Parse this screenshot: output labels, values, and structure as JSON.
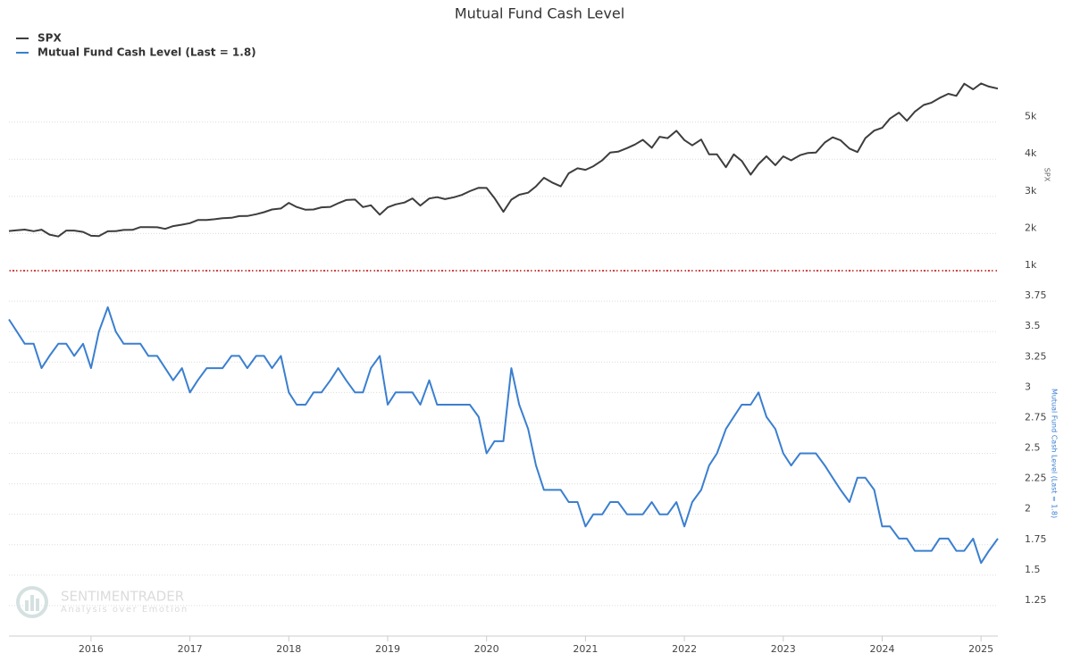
{
  "chart_data": {
    "type": "line",
    "title": "Mutual Fund Cash Level",
    "x": [
      2015.17,
      2015.25,
      2015.33,
      2015.42,
      2015.5,
      2015.58,
      2015.67,
      2015.75,
      2015.83,
      2015.92,
      2016,
      2016.08,
      2016.17,
      2016.25,
      2016.33,
      2016.42,
      2016.5,
      2016.58,
      2016.67,
      2016.75,
      2016.83,
      2016.92,
      2017,
      2017.08,
      2017.17,
      2017.25,
      2017.33,
      2017.42,
      2017.5,
      2017.58,
      2017.67,
      2017.75,
      2017.83,
      2017.92,
      2018,
      2018.08,
      2018.17,
      2018.25,
      2018.33,
      2018.42,
      2018.5,
      2018.58,
      2018.67,
      2018.75,
      2018.83,
      2018.92,
      2019,
      2019.08,
      2019.17,
      2019.25,
      2019.33,
      2019.42,
      2019.5,
      2019.58,
      2019.67,
      2019.75,
      2019.83,
      2019.92,
      2020,
      2020.08,
      2020.17,
      2020.25,
      2020.33,
      2020.42,
      2020.5,
      2020.58,
      2020.67,
      2020.75,
      2020.83,
      2020.92,
      2021,
      2021.08,
      2021.17,
      2021.25,
      2021.33,
      2021.42,
      2021.5,
      2021.58,
      2021.67,
      2021.75,
      2021.83,
      2021.92,
      2022,
      2022.08,
      2022.17,
      2022.25,
      2022.33,
      2022.42,
      2022.5,
      2022.58,
      2022.67,
      2022.75,
      2022.83,
      2022.92,
      2023,
      2023.08,
      2023.17,
      2023.25,
      2023.33,
      2023.42,
      2023.5,
      2023.58,
      2023.67,
      2023.75,
      2023.83,
      2023.92,
      2024,
      2024.08,
      2024.17,
      2024.25,
      2024.33,
      2024.42,
      2024.5,
      2024.58,
      2024.67,
      2024.75,
      2024.83,
      2024.92,
      2025,
      2025.08,
      2025.17
    ],
    "xlim": [
      2015.17,
      2025.17
    ],
    "xticks": [
      2016,
      2017,
      2018,
      2019,
      2020,
      2021,
      2022,
      2023,
      2024,
      2025
    ],
    "ylim": [
      1000,
      6170
    ],
    "yticks": [
      {
        "value": 1000,
        "label": "1k"
      },
      {
        "value": 2000,
        "label": "2k"
      },
      {
        "value": 3000,
        "label": "3k"
      },
      {
        "value": 4000,
        "label": "4k"
      },
      {
        "value": 5000,
        "label": "5k"
      }
    ],
    "y2lim": [
      1,
      4
    ],
    "y2ticks": [
      1.25,
      1.5,
      1.75,
      2,
      2.25,
      2.5,
      2.75,
      3,
      3.25,
      3.5,
      3.75
    ],
    "grid": true,
    "legend": "top-left",
    "series": [
      {
        "name": "SPX",
        "color": "#3d3d3d",
        "axis": "y",
        "values": [
          2068,
          2086,
          2107,
          2063,
          2104,
          1972,
          1920,
          2079,
          2080,
          2044,
          1940,
          1932,
          2060,
          2065,
          2097,
          2099,
          2174,
          2171,
          2168,
          2126,
          2199,
          2239,
          2279,
          2364,
          2363,
          2384,
          2412,
          2423,
          2470,
          2472,
          2519,
          2575,
          2648,
          2674,
          2824,
          2714,
          2641,
          2648,
          2705,
          2718,
          2816,
          2902,
          2914,
          2712,
          2760,
          2507,
          2704,
          2784,
          2834,
          2946,
          2752,
          2942,
          2980,
          2926,
          2977,
          3038,
          3141,
          3231,
          3226,
          2954,
          2585,
          2912,
          3044,
          3100,
          3271,
          3500,
          3363,
          3270,
          3622,
          3756,
          3714,
          3811,
          3973,
          4181,
          4204,
          4298,
          4395,
          4523,
          4308,
          4605,
          4567,
          4766,
          4516,
          4374,
          4530,
          4132,
          4132,
          3785,
          4130,
          3955,
          3586,
          3872,
          4080,
          3840,
          4077,
          3970,
          4109,
          4169,
          4180,
          4450,
          4589,
          4508,
          4288,
          4194,
          4568,
          4770,
          4846,
          5096,
          5254,
          5036,
          5278,
          5460,
          5522,
          5648,
          5762,
          5705,
          6032,
          5882,
          6041,
          5955,
          5900
        ]
      },
      {
        "name": "Mutual Fund Cash Level (Last = 1.8)",
        "color": "#3a7fd0",
        "axis": "y2",
        "values": [
          3.6,
          3.5,
          3.4,
          3.4,
          3.2,
          3.3,
          3.4,
          3.4,
          3.3,
          3.4,
          3.2,
          3.5,
          3.7,
          3.5,
          3.4,
          3.4,
          3.4,
          3.3,
          3.3,
          3.2,
          3.1,
          3.2,
          3.0,
          3.1,
          3.2,
          3.2,
          3.2,
          3.3,
          3.3,
          3.2,
          3.3,
          3.3,
          3.2,
          3.3,
          3.0,
          2.9,
          2.9,
          3.0,
          3.0,
          3.1,
          3.2,
          3.1,
          3.0,
          3.0,
          3.2,
          3.3,
          2.9,
          3.0,
          3.0,
          3.0,
          2.9,
          3.1,
          2.9,
          2.9,
          2.9,
          2.9,
          2.9,
          2.8,
          2.5,
          2.6,
          2.6,
          3.2,
          2.9,
          2.7,
          2.4,
          2.2,
          2.2,
          2.2,
          2.1,
          2.1,
          1.9,
          2.0,
          2.0,
          2.1,
          2.1,
          2.0,
          2.0,
          2.0,
          2.1,
          2.0,
          2.0,
          2.1,
          1.9,
          2.1,
          2.2,
          2.4,
          2.5,
          2.7,
          2.8,
          2.9,
          2.9,
          3.0,
          2.8,
          2.7,
          2.5,
          2.4,
          2.5,
          2.5,
          2.5,
          2.4,
          2.3,
          2.2,
          2.1,
          2.3,
          2.3,
          2.2,
          1.9,
          1.9,
          1.8,
          1.8,
          1.7,
          1.7,
          1.7,
          1.8,
          1.8,
          1.7,
          1.7,
          1.8,
          1.6,
          1.7,
          1.8
        ]
      }
    ]
  },
  "watermark": {
    "brand": "SENTIMENTRADER",
    "tagline": "Analysis over Emotion"
  }
}
